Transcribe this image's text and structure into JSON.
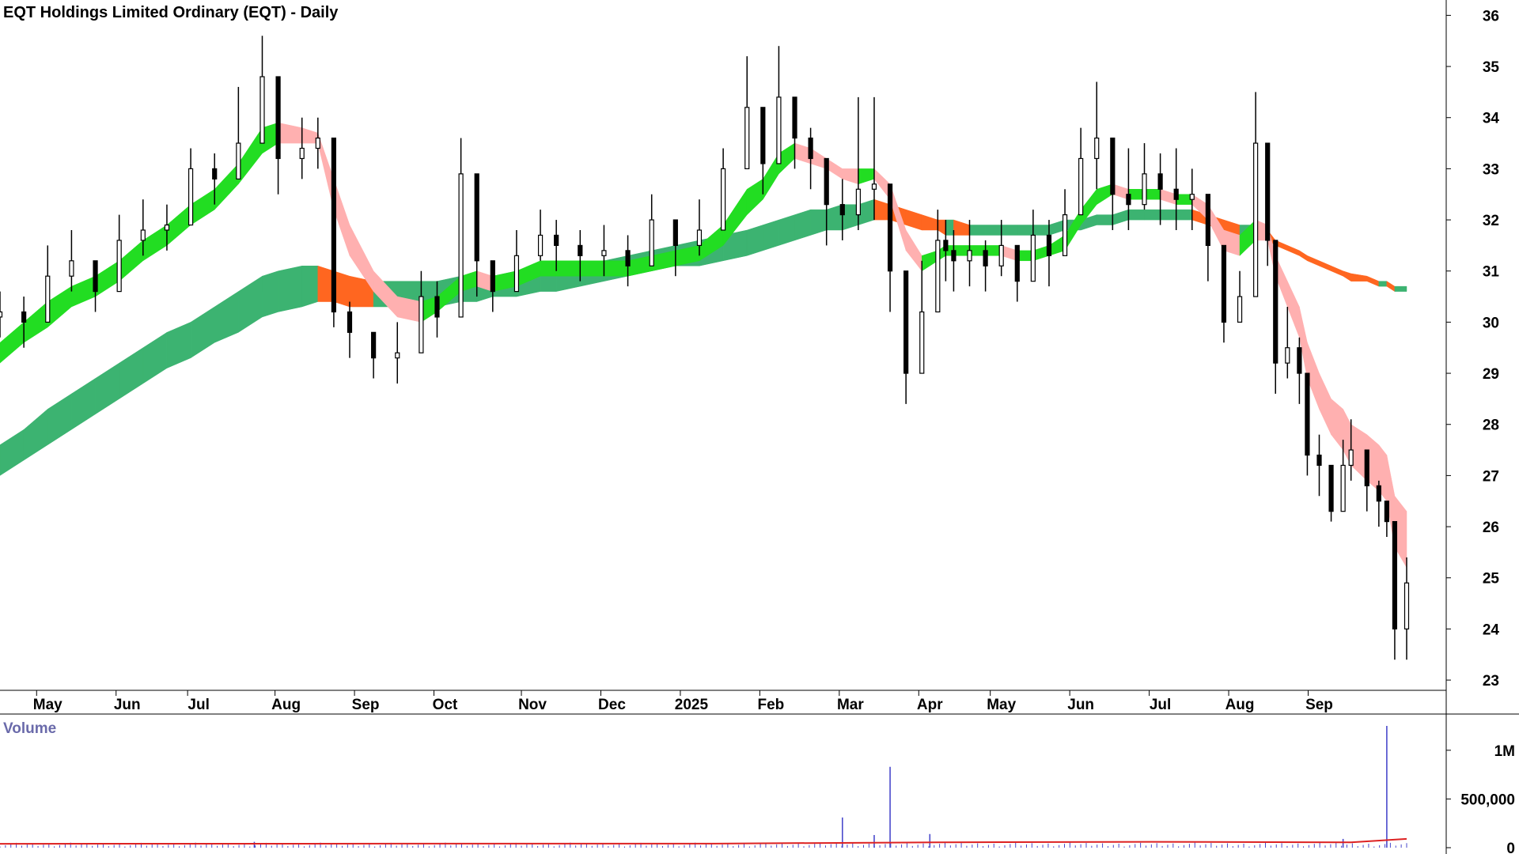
{
  "chart_data": {
    "type": "candlestick",
    "title": "EQT Holdings Limited Ordinary (EQT) - Daily",
    "price_axis": {
      "ticks": [
        "23",
        "24",
        "25",
        "26",
        "27",
        "28",
        "29",
        "30",
        "31",
        "32",
        "33",
        "34",
        "35",
        "36"
      ],
      "range": [
        22.8,
        36.3
      ]
    },
    "months": [
      {
        "label": "May",
        "x": 0.6
      },
      {
        "label": "Jun",
        "x": 1.6
      },
      {
        "label": "Jul",
        "x": 2.5
      },
      {
        "label": "Aug",
        "x": 3.6
      },
      {
        "label": "Sep",
        "x": 4.6
      },
      {
        "label": "Oct",
        "x": 5.6
      },
      {
        "label": "Nov",
        "x": 6.7
      },
      {
        "label": "Dec",
        "x": 7.7
      },
      {
        "label": "2025",
        "x": 8.7
      },
      {
        "label": "Feb",
        "x": 9.7
      },
      {
        "label": "Mar",
        "x": 10.7
      },
      {
        "label": "Apr",
        "x": 11.7
      },
      {
        "label": "May",
        "x": 12.6
      },
      {
        "label": "Jun",
        "x": 13.6
      },
      {
        "label": "Jul",
        "x": 14.6
      },
      {
        "label": "Aug",
        "x": 15.6
      },
      {
        "label": "Sep",
        "x": 16.6
      }
    ],
    "price": {
      "x": [
        0,
        0.3,
        0.6,
        0.9,
        1.2,
        1.5,
        1.8,
        2.1,
        2.4,
        2.7,
        3.0,
        3.3,
        3.5,
        3.8,
        4.0,
        4.2,
        4.4,
        4.7,
        5.0,
        5.3,
        5.5,
        5.8,
        6.0,
        6.2,
        6.5,
        6.8,
        7.0,
        7.3,
        7.6,
        7.9,
        8.2,
        8.5,
        8.8,
        9.1,
        9.4,
        9.6,
        9.8,
        10.0,
        10.2,
        10.4,
        10.6,
        10.8,
        11.0,
        11.2,
        11.4,
        11.6,
        11.8,
        11.9,
        12.0,
        12.2,
        12.4,
        12.6,
        12.8,
        13.0,
        13.2,
        13.4,
        13.6,
        13.8,
        14.0,
        14.2,
        14.4,
        14.6,
        14.8,
        15.0,
        15.2,
        15.4,
        15.6,
        15.8,
        15.95,
        16.05,
        16.2,
        16.35,
        16.45,
        16.6,
        16.75,
        16.9,
        17.0,
        17.2,
        17.35,
        17.45,
        17.55,
        17.7
      ],
      "close": [
        30.2,
        30.0,
        30.9,
        31.2,
        30.6,
        31.6,
        31.8,
        31.9,
        33.0,
        32.8,
        33.5,
        34.8,
        33.2,
        33.4,
        33.6,
        30.2,
        29.8,
        29.3,
        29.4,
        30.5,
        30.1,
        32.9,
        31.2,
        30.6,
        31.3,
        31.7,
        31.5,
        31.3,
        31.4,
        31.1,
        32.0,
        31.5,
        31.8,
        33.0,
        34.2,
        33.1,
        34.4,
        33.6,
        33.2,
        32.3,
        32.1,
        32.6,
        32.7,
        31.0,
        29.0,
        30.2,
        31.6,
        31.4,
        31.2,
        31.4,
        31.1,
        31.5,
        30.8,
        31.7,
        31.3,
        32.1,
        33.2,
        33.6,
        32.5,
        32.3,
        32.9,
        32.6,
        32.4,
        32.5,
        31.5,
        30.0,
        30.5,
        33.5,
        31.6,
        29.2,
        29.5,
        29.0,
        27.4,
        27.2,
        26.3,
        27.2,
        27.5,
        26.8,
        26.5,
        26.1,
        24.0,
        24.9
      ],
      "high": [
        30.6,
        30.5,
        31.5,
        31.8,
        31.2,
        32.1,
        32.4,
        32.3,
        33.4,
        33.3,
        34.6,
        35.6,
        34.0,
        34.0,
        34.0,
        31.2,
        30.4,
        29.8,
        30.0,
        31.0,
        30.8,
        33.6,
        31.8,
        31.1,
        31.8,
        32.2,
        32.0,
        31.8,
        31.9,
        31.7,
        32.5,
        32.0,
        32.4,
        33.4,
        35.2,
        33.6,
        35.4,
        34.3,
        33.8,
        32.8,
        32.8,
        34.4,
        34.4,
        31.8,
        30.6,
        31.2,
        32.2,
        32.0,
        31.8,
        32.0,
        31.6,
        32.0,
        31.4,
        32.2,
        32.0,
        32.6,
        33.8,
        34.7,
        33.4,
        33.4,
        33.5,
        33.3,
        33.4,
        33.0,
        32.2,
        31.3,
        31.0,
        34.5,
        32.6,
        30.1,
        30.3,
        29.7,
        28.1,
        27.8,
        26.8,
        27.7,
        28.1,
        27.3,
        26.9,
        26.5,
        25.4,
        25.4
      ],
      "low": [
        29.7,
        29.5,
        30.4,
        30.6,
        30.2,
        31.1,
        31.3,
        31.4,
        32.4,
        32.3,
        33.1,
        33.8,
        32.5,
        32.8,
        33.0,
        29.9,
        29.3,
        28.9,
        28.8,
        29.9,
        29.7,
        31.8,
        30.5,
        30.2,
        30.9,
        31.2,
        31.0,
        30.8,
        30.9,
        30.7,
        31.5,
        30.9,
        31.3,
        32.4,
        33.6,
        32.5,
        33.8,
        33.0,
        32.6,
        31.5,
        31.6,
        31.8,
        32.0,
        30.2,
        28.4,
        29.6,
        30.8,
        30.8,
        30.6,
        30.7,
        30.6,
        30.9,
        30.4,
        31.1,
        30.7,
        31.5,
        32.4,
        32.6,
        31.8,
        31.8,
        32.2,
        31.9,
        31.8,
        31.8,
        30.8,
        29.6,
        30.0,
        31.6,
        31.1,
        28.6,
        28.9,
        28.4,
        27.0,
        26.6,
        26.1,
        26.7,
        26.9,
        26.3,
        26.0,
        25.8,
        23.4,
        23.4
      ]
    },
    "ema_fast_upper": [
      29.6,
      30.0,
      30.4,
      30.7,
      30.9,
      31.2,
      31.6,
      31.9,
      32.3,
      32.6,
      33.1,
      33.8,
      33.9,
      33.8,
      33.7,
      32.8,
      31.9,
      31.0,
      30.5,
      30.4,
      30.5,
      30.9,
      31.0,
      30.9,
      31.0,
      31.2,
      31.2,
      31.2,
      31.2,
      31.2,
      31.3,
      31.4,
      31.5,
      31.9,
      32.6,
      32.8,
      33.3,
      33.5,
      33.4,
      33.2,
      33.0,
      33.0,
      33.0,
      32.7,
      31.8,
      31.3,
      31.4,
      31.5,
      31.5,
      31.5,
      31.5,
      31.5,
      31.4,
      31.4,
      31.5,
      31.7,
      32.2,
      32.6,
      32.7,
      32.6,
      32.6,
      32.6,
      32.5,
      32.5,
      32.3,
      31.8,
      31.7,
      32.0,
      31.9,
      31.3,
      30.8,
      30.3,
      29.6,
      29.0,
      28.5,
      28.3,
      28.0,
      27.8,
      27.6,
      27.4,
      26.6,
      26.3
    ],
    "ema_fast_lower": [
      29.2,
      29.6,
      29.9,
      30.3,
      30.5,
      30.8,
      31.2,
      31.5,
      31.9,
      32.2,
      32.7,
      33.3,
      33.5,
      33.5,
      33.5,
      32.2,
      31.3,
      30.6,
      30.1,
      30.0,
      30.2,
      30.6,
      30.7,
      30.6,
      30.7,
      30.9,
      30.9,
      30.9,
      30.9,
      30.9,
      31.0,
      31.1,
      31.2,
      31.5,
      32.1,
      32.4,
      32.9,
      33.2,
      33.1,
      33.0,
      32.8,
      32.7,
      32.8,
      32.4,
      31.4,
      31.0,
      31.2,
      31.3,
      31.3,
      31.3,
      31.3,
      31.3,
      31.2,
      31.2,
      31.3,
      31.4,
      31.9,
      32.3,
      32.5,
      32.4,
      32.4,
      32.4,
      32.3,
      32.3,
      32.0,
      31.4,
      31.3,
      31.6,
      31.6,
      30.9,
      30.3,
      29.7,
      28.9,
      28.3,
      27.8,
      27.5,
      27.2,
      26.9,
      26.7,
      26.5,
      25.6,
      25.2
    ],
    "ema_slow_upper": [
      27.6,
      27.9,
      28.3,
      28.6,
      28.9,
      29.2,
      29.5,
      29.8,
      30.0,
      30.3,
      30.6,
      30.9,
      31.0,
      31.1,
      31.1,
      31.0,
      30.9,
      30.8,
      30.8,
      30.8,
      30.8,
      30.9,
      30.9,
      30.9,
      31.0,
      31.0,
      31.1,
      31.1,
      31.2,
      31.3,
      31.4,
      31.5,
      31.6,
      31.7,
      31.8,
      31.9,
      32.0,
      32.1,
      32.2,
      32.2,
      32.3,
      32.3,
      32.4,
      32.3,
      32.2,
      32.1,
      32.0,
      32.0,
      32.0,
      31.9,
      31.9,
      31.9,
      31.9,
      31.9,
      31.9,
      32.0,
      32.0,
      32.1,
      32.1,
      32.2,
      32.2,
      32.2,
      32.2,
      32.2,
      32.1,
      32.0,
      31.9,
      31.9,
      31.8,
      31.6,
      31.5,
      31.4,
      31.3,
      31.2,
      31.1,
      31.0,
      30.95,
      30.9,
      30.8,
      30.8,
      30.7,
      30.7
    ],
    "ema_slow_lower": [
      27.0,
      27.3,
      27.6,
      27.9,
      28.2,
      28.5,
      28.8,
      29.1,
      29.3,
      29.6,
      29.8,
      30.1,
      30.2,
      30.3,
      30.4,
      30.4,
      30.3,
      30.3,
      30.3,
      30.3,
      30.3,
      30.4,
      30.4,
      30.5,
      30.5,
      30.6,
      30.6,
      30.7,
      30.8,
      30.9,
      31.0,
      31.1,
      31.1,
      31.2,
      31.3,
      31.4,
      31.5,
      31.6,
      31.7,
      31.8,
      31.8,
      31.9,
      32.0,
      32.0,
      31.9,
      31.8,
      31.8,
      31.7,
      31.7,
      31.7,
      31.7,
      31.7,
      31.7,
      31.7,
      31.7,
      31.8,
      31.8,
      31.9,
      31.9,
      32.0,
      32.0,
      32.0,
      32.0,
      32.0,
      31.9,
      31.8,
      31.7,
      31.7,
      31.6,
      31.5,
      31.4,
      31.3,
      31.2,
      31.1,
      31.0,
      30.9,
      30.8,
      30.8,
      30.7,
      30.7,
      30.6,
      30.6
    ],
    "volume": {
      "axis_title": "Volume",
      "ticks": [
        {
          "label": "0",
          "v": 0
        },
        {
          "label": "500,000",
          "v": 500000
        },
        {
          "label": "1M",
          "v": 1000000
        }
      ],
      "range": [
        0,
        1250000
      ],
      "spikes": [
        {
          "x": 3.2,
          "v": 60000
        },
        {
          "x": 10.6,
          "v": 310000
        },
        {
          "x": 11.0,
          "v": 130000
        },
        {
          "x": 11.2,
          "v": 830000
        },
        {
          "x": 11.7,
          "v": 140000
        },
        {
          "x": 16.9,
          "v": 90000
        },
        {
          "x": 17.45,
          "v": 1250000
        }
      ],
      "avg_line": [
        {
          "x": 0,
          "v": 40000
        },
        {
          "x": 9,
          "v": 42000
        },
        {
          "x": 11.8,
          "v": 55000
        },
        {
          "x": 14.5,
          "v": 60000
        },
        {
          "x": 17.0,
          "v": 55000
        },
        {
          "x": 17.7,
          "v": 90000
        }
      ]
    },
    "colors": {
      "fast_green": "#22dd22",
      "slow_green": "#3cb371",
      "fast_red": "#ffb0b0",
      "slow_red": "#ff6620",
      "volume_bar": "#4a4acc",
      "volume_avg": "#dd2222",
      "candle": "#000000",
      "volume_label": "#6a6aaa"
    }
  }
}
